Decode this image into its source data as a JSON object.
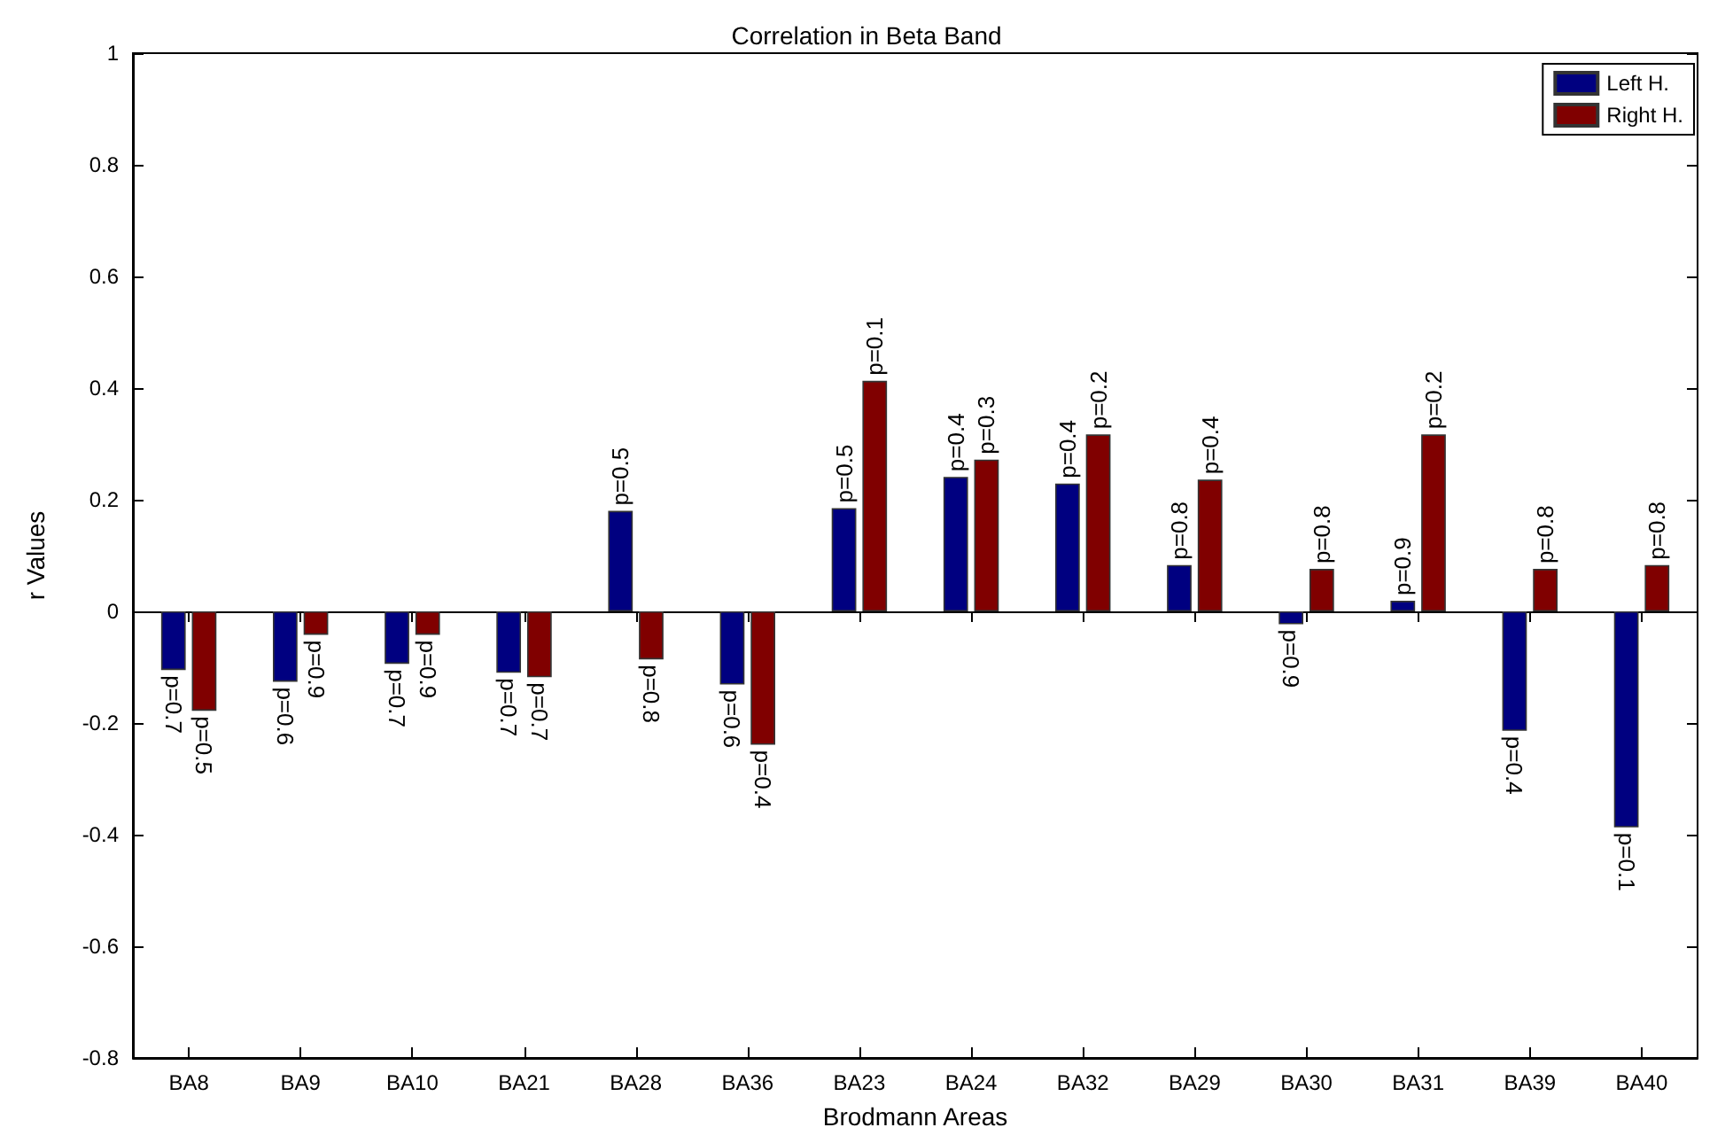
{
  "chart_data": {
    "type": "bar",
    "title": "Correlation in Beta Band",
    "xlabel": "Brodmann Areas",
    "ylabel": "r Values",
    "categories": [
      "BA8",
      "BA9",
      "BA10",
      "BA21",
      "BA28",
      "BA36",
      "BA23",
      "BA24",
      "BA32",
      "BA29",
      "BA30",
      "BA31",
      "BA39",
      "BA40"
    ],
    "series": [
      {
        "name": "Left H.",
        "color": "#000080",
        "values": [
          -0.105,
          -0.126,
          -0.094,
          -0.11,
          0.18,
          -0.131,
          0.185,
          0.241,
          0.229,
          0.083,
          -0.023,
          0.019,
          -0.214,
          -0.387
        ]
      },
      {
        "name": "Right H.",
        "color": "#800000",
        "values": [
          -0.178,
          -0.042,
          -0.042,
          -0.118,
          -0.086,
          -0.239,
          0.413,
          0.272,
          0.317,
          0.236,
          0.076,
          0.317,
          0.076,
          0.083
        ]
      }
    ],
    "annotations": [
      {
        "text": "p=0.7",
        "x": "BA8",
        "y": -0.105
      },
      {
        "text": "p=0.6",
        "x": "BA9",
        "y": -0.126
      },
      {
        "text": "p=0.7",
        "x": "BA10",
        "y": -0.094
      },
      {
        "text": "p=0.7",
        "x": "BA21",
        "y": -0.11
      },
      {
        "text": "p=0.5",
        "x": "BA28",
        "y": 0.18
      },
      {
        "text": "p=0.6",
        "x": "BA36",
        "y": -0.131
      },
      {
        "text": "p=0.5",
        "x": "BA23",
        "y": 0.185
      },
      {
        "text": "p=0.4",
        "x": "BA24",
        "y": 0.241
      },
      {
        "text": "p=0.4",
        "x": "BA32",
        "y": 0.229
      },
      {
        "text": "p=0.8",
        "x": "BA29",
        "y": 0.083
      },
      {
        "text": "p=0.9",
        "x": "BA30",
        "y": -0.023
      },
      {
        "text": "p=0.9",
        "x": "BA31",
        "y": 0.019
      },
      {
        "text": "p=0.4",
        "x": "BA39",
        "y": -0.214
      },
      {
        "text": "p=0.1",
        "x": "BA40",
        "y": -0.387
      },
      {
        "text": "p=0.5",
        "x": "BA8",
        "y": -0.178
      },
      {
        "text": "p=0.9",
        "x": "BA9",
        "y": -0.042
      },
      {
        "text": "p=0.9",
        "x": "BA10",
        "y": -0.042
      },
      {
        "text": "p=0.7",
        "x": "BA21",
        "y": -0.118
      },
      {
        "text": "p=0.8",
        "x": "BA28",
        "y": -0.086
      },
      {
        "text": "p=0.4",
        "x": "BA36",
        "y": -0.239
      },
      {
        "text": "p=0.1",
        "x": "BA23",
        "y": 0.413
      },
      {
        "text": "p=0.3",
        "x": "BA24",
        "y": 0.272
      },
      {
        "text": "p=0.2",
        "x": "BA32",
        "y": 0.317
      },
      {
        "text": "p=0.4",
        "x": "BA29",
        "y": 0.236
      },
      {
        "text": "p=0.8",
        "x": "BA30",
        "y": 0.076
      },
      {
        "text": "p=0.2",
        "x": "BA31",
        "y": 0.317
      },
      {
        "text": "p=0.8",
        "x": "BA39",
        "y": 0.076
      },
      {
        "text": "p=0.8",
        "x": "BA40",
        "y": 0.083
      }
    ],
    "ylim": [
      -0.8,
      1
    ],
    "yticks": [
      -0.8,
      -0.6,
      -0.4,
      -0.2,
      0,
      0.2,
      0.4,
      0.6,
      0.8,
      1
    ],
    "legend": "top right"
  }
}
